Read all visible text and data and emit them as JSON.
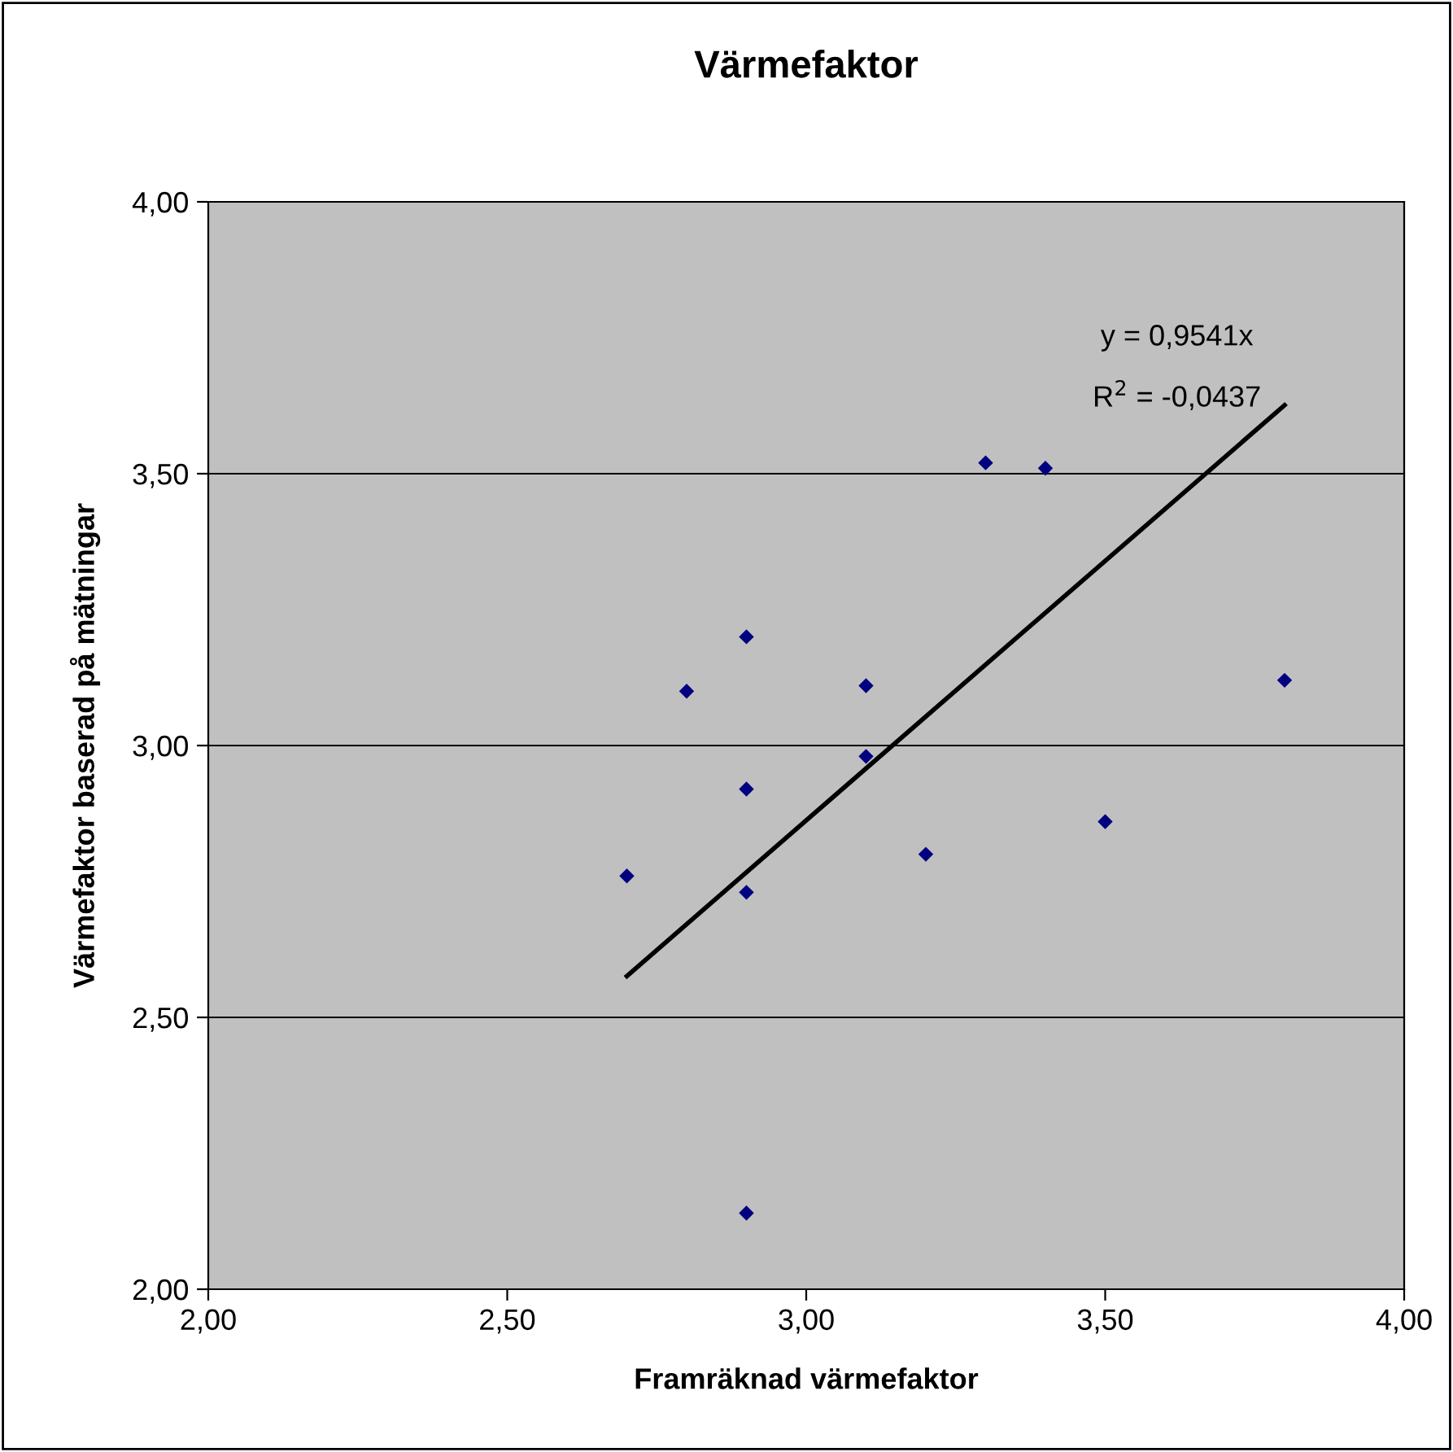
{
  "chart_data": {
    "type": "scatter",
    "title": "Värmefaktor",
    "xlabel": "Framräknad värmefaktor",
    "ylabel": "Värmefaktor baserad på mätningar",
    "x": [
      2.7,
      2.8,
      2.9,
      2.9,
      2.9,
      2.9,
      3.1,
      3.1,
      3.2,
      3.3,
      3.4,
      3.5,
      3.8
    ],
    "series": [
      {
        "color": "#000080",
        "values": [
          2.76,
          3.1,
          3.2,
          2.92,
          2.73,
          2.14,
          3.11,
          2.98,
          2.8,
          3.52,
          3.51,
          2.86,
          3.12
        ],
        "marker": "diamond"
      },
      {
        "type": "line",
        "color": "#000000",
        "x": [
          2.7,
          3.8
        ],
        "values": [
          2.576,
          3.626
        ],
        "marker": "none"
      }
    ],
    "annotations": [
      "y = 0,9541x",
      "R$^{2}$ = -0,0437"
    ],
    "xlim": [
      2,
      4
    ],
    "ylim": [
      2,
      4
    ],
    "xticks": [
      {
        "value": 2,
        "label": "2,00"
      },
      {
        "value": 2.5,
        "label": "2,50"
      },
      {
        "value": 3,
        "label": "3,00"
      },
      {
        "value": 3.5,
        "label": "3,50"
      },
      {
        "value": 4,
        "label": "4,00"
      }
    ],
    "yticks": [
      {
        "value": 2,
        "label": "2,00"
      },
      {
        "value": 2.5,
        "label": "2,50"
      },
      {
        "value": 3,
        "label": "3,00"
      },
      {
        "value": 3.5,
        "label": "3,50"
      },
      {
        "value": 4,
        "label": "4,00"
      }
    ],
    "grid": "y",
    "legend": false
  }
}
